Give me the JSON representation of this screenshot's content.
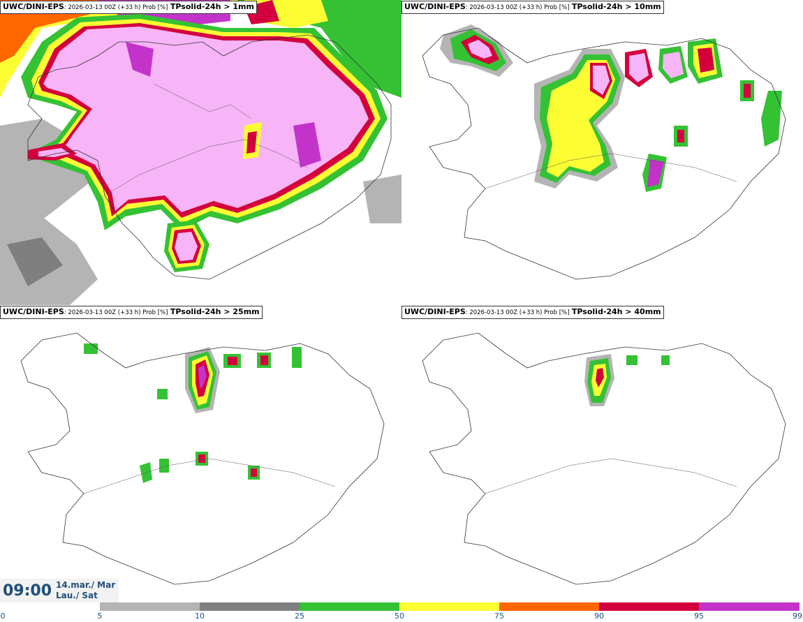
{
  "panels": [
    {
      "model": "UWC/DINI-EPS",
      "meta": ": 2026-03-13 00Z (+33 h) Prob [%]",
      "param": "TPsolid-24h > 1mm"
    },
    {
      "model": "UWC/DINI-EPS",
      "meta": ": 2026-03-13 00Z (+33 h) Prob [%]",
      "param": "TPsolid-24h > 10mm"
    },
    {
      "model": "UWC/DINI-EPS",
      "meta": ": 2026-03-13 00Z (+33 h) Prob [%]",
      "param": "TPsolid-24h > 25mm"
    },
    {
      "model": "UWC/DINI-EPS",
      "meta": ": 2026-03-13 00Z (+33 h) Prob [%]",
      "param": "TPsolid-24h > 40mm"
    }
  ],
  "time": {
    "clock": "09:00",
    "date_line1": "14.mar./ Mar",
    "date_line2": "Lau./ Sat"
  },
  "colorbar": {
    "ticks": [
      "0",
      "5",
      "10",
      "25",
      "50",
      "75",
      "90",
      "95",
      "99"
    ],
    "colors": [
      "#ffffff",
      "#b4b4b4",
      "#7f7f7f",
      "#34c234",
      "#fdfd33",
      "#fe6600",
      "#d3003d",
      "#c333c9",
      "#f7b4f7"
    ]
  },
  "legend_colors": {
    "prob_5": "#b4b4b4",
    "prob_10": "#7f7f7f",
    "prob_25": "#34c234",
    "prob_50": "#fdfd33",
    "prob_75": "#fe6600",
    "prob_90": "#d3003d",
    "prob_95": "#c333c9",
    "prob_99": "#f7b4f7"
  }
}
